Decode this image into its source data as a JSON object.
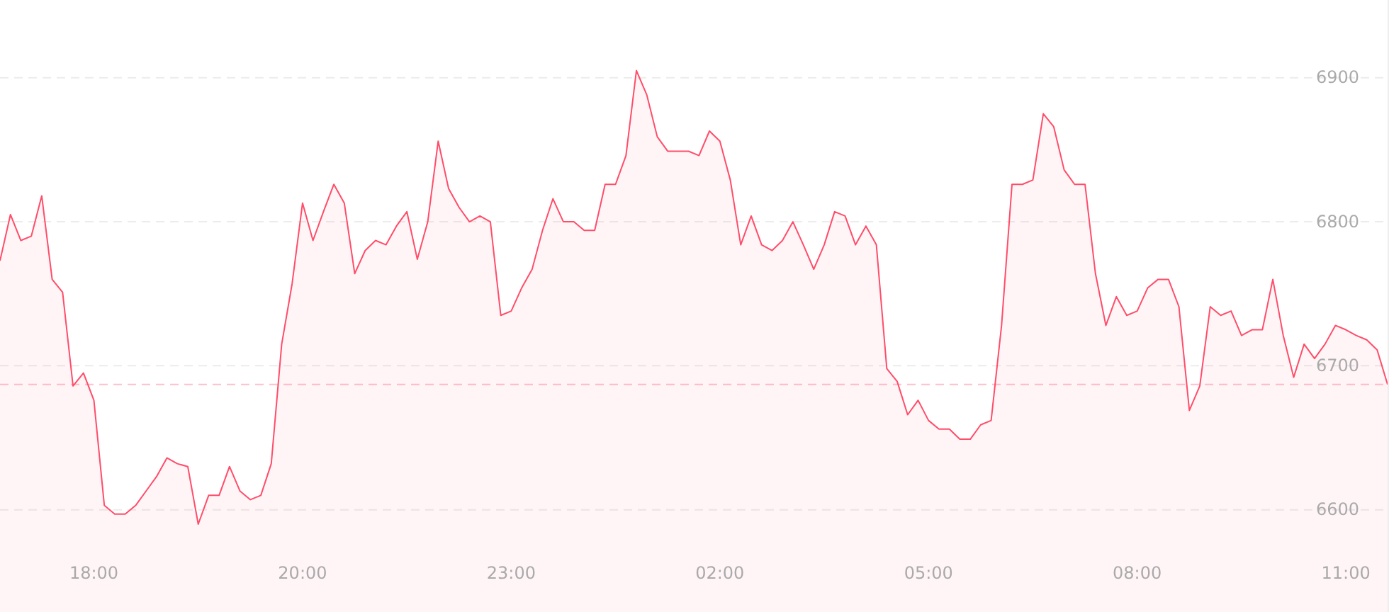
{
  "chart_data": {
    "type": "area",
    "categories": [
      null,
      null,
      null,
      null,
      null,
      null,
      null,
      null,
      null,
      "18:00",
      null,
      null,
      null,
      null,
      null,
      null,
      null,
      null,
      null,
      null,
      null,
      null,
      null,
      null,
      null,
      null,
      null,
      null,
      null,
      "20:00",
      null,
      null,
      null,
      null,
      null,
      null,
      null,
      null,
      null,
      null,
      null,
      null,
      null,
      null,
      null,
      null,
      null,
      null,
      null,
      "23:00",
      null,
      null,
      null,
      null,
      null,
      null,
      null,
      null,
      null,
      null,
      null,
      null,
      null,
      null,
      null,
      null,
      null,
      null,
      null,
      "02:00",
      null,
      null,
      null,
      null,
      null,
      null,
      null,
      null,
      null,
      null,
      null,
      null,
      null,
      null,
      null,
      null,
      null,
      null,
      null,
      "05:00",
      null,
      null,
      null,
      null,
      null,
      null,
      null,
      null,
      null,
      null,
      null,
      null,
      null,
      null,
      null,
      null,
      null,
      null,
      null,
      "08:00",
      null,
      null,
      null,
      null,
      null,
      null,
      null,
      null,
      null,
      null,
      null,
      null,
      null,
      null,
      null,
      null,
      null,
      null,
      null,
      "11:00",
      null,
      null,
      null,
      null
    ],
    "series": [
      {
        "color": "#ff4d6a",
        "values": [
          6773,
          6805,
          6787,
          6790,
          6818,
          6760,
          6751,
          6686,
          6695,
          6676,
          6603,
          6597,
          6597,
          6603,
          6613,
          6623,
          6636,
          6632,
          6630,
          6590,
          6610,
          6610,
          6630,
          6613,
          6607,
          6610,
          6632,
          6715,
          6757,
          6813,
          6787,
          6807,
          6826,
          6813,
          6764,
          6780,
          6787,
          6784,
          6797,
          6807,
          6774,
          6800,
          6856,
          6823,
          6810,
          6800,
          6804,
          6800,
          6735,
          6738,
          6754,
          6767,
          6794,
          6816,
          6800,
          6800,
          6794,
          6794,
          6826,
          6826,
          6846,
          6905,
          6888,
          6859,
          6849,
          6849,
          6849,
          6846,
          6863,
          6856,
          6829,
          6784,
          6804,
          6784,
          6780,
          6787,
          6800,
          6784,
          6767,
          6784,
          6807,
          6804,
          6784,
          6797,
          6784,
          6698,
          6689,
          6666,
          6676,
          6662,
          6656,
          6656,
          6649,
          6649,
          6659,
          6662,
          6728,
          6826,
          6826,
          6829,
          6875,
          6866,
          6836,
          6826,
          6826,
          6764,
          6728,
          6748,
          6735,
          6738,
          6754,
          6760,
          6760,
          6741,
          6669,
          6686,
          6741,
          6735,
          6738,
          6721,
          6725,
          6725,
          6760,
          6721,
          6692,
          6715,
          6705,
          6715,
          6728,
          6725,
          6721,
          6718,
          6711,
          6687
        ]
      }
    ],
    "ylim": [
      6529,
      6954
    ],
    "yticks": [
      6600,
      6700,
      6800,
      6900
    ],
    "grid": "y",
    "ref_lines": [
      {
        "axis": "y",
        "value": 6687,
        "color": "#ffc0cb",
        "line_style": "dashed"
      }
    ]
  }
}
